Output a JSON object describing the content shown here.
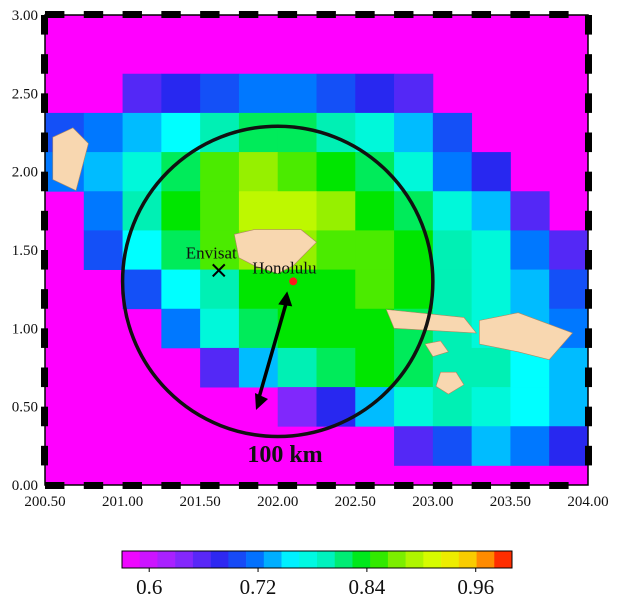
{
  "chart_data": {
    "type": "heatmap",
    "x_ticks": [
      "200.50",
      "201.00",
      "201.50",
      "202.00",
      "202.50",
      "203.00",
      "203.50",
      "204.00"
    ],
    "y_ticks": [
      "0.00",
      "0.50",
      "1.00",
      "1.50",
      "2.00",
      "2.50",
      "3.00"
    ],
    "xlim": [
      200.5,
      204.0
    ],
    "ylim": [
      0.0,
      3.0
    ],
    "background_color": "#ff00ff",
    "cell_size": 0.25,
    "grid_origin": [
      200.5,
      0.125
    ],
    "grid_rows_north_to_south": [
      [
        0.6,
        0.6,
        0.66,
        0.68,
        0.7,
        0.72,
        0.72,
        0.7,
        0.68,
        0.66,
        0.6,
        0.6,
        0.6,
        0.6
      ],
      [
        0.7,
        0.72,
        0.74,
        0.76,
        0.8,
        0.82,
        0.82,
        0.8,
        0.78,
        0.74,
        0.7,
        0.6,
        0.6,
        0.6
      ],
      [
        0.72,
        0.74,
        0.78,
        0.82,
        0.86,
        0.88,
        0.86,
        0.84,
        0.82,
        0.78,
        0.72,
        0.68,
        0.6,
        0.6
      ],
      [
        0.6,
        0.72,
        0.8,
        0.84,
        0.86,
        0.9,
        0.9,
        0.88,
        0.84,
        0.82,
        0.78,
        0.74,
        0.66,
        0.6
      ],
      [
        0.6,
        0.7,
        0.76,
        0.82,
        0.86,
        0.88,
        0.88,
        0.86,
        0.86,
        0.84,
        0.8,
        0.78,
        0.72,
        0.66
      ],
      [
        0.6,
        0.6,
        0.7,
        0.76,
        0.8,
        0.84,
        0.84,
        0.84,
        0.86,
        0.84,
        0.8,
        0.78,
        0.74,
        0.7
      ],
      [
        0.6,
        0.6,
        0.6,
        0.72,
        0.78,
        0.82,
        0.84,
        0.84,
        0.84,
        0.82,
        0.8,
        0.78,
        0.74,
        0.72
      ],
      [
        0.6,
        0.6,
        0.6,
        0.6,
        0.66,
        0.74,
        0.8,
        0.82,
        0.84,
        0.82,
        0.8,
        0.8,
        0.76,
        0.74
      ],
      [
        0.6,
        0.6,
        0.6,
        0.6,
        0.6,
        0.6,
        0.64,
        0.68,
        0.74,
        0.78,
        0.8,
        0.78,
        0.76,
        0.74
      ],
      [
        0.6,
        0.6,
        0.6,
        0.6,
        0.6,
        0.6,
        0.6,
        0.6,
        0.6,
        0.66,
        0.7,
        0.74,
        0.72,
        0.68
      ]
    ],
    "grid_first_row_top_y": 2.625,
    "colorbar": {
      "vmin": 0.57,
      "vmax": 1.0,
      "steps": 22,
      "tick_values": [
        0.6,
        0.72,
        0.84,
        0.96
      ],
      "tick_labels": [
        "0.6",
        "0.72",
        "0.84",
        "0.96"
      ]
    },
    "annotations": {
      "envisat": {
        "label": "Envisat",
        "lon": 201.62,
        "lat": 1.37
      },
      "honolulu": {
        "label": "Honolulu",
        "lon": 202.1,
        "lat": 1.3
      },
      "circle": {
        "center_lon": 202.0,
        "center_lat": 1.3,
        "radius_lon": 1.0
      },
      "scale_label": "100 km"
    },
    "islands": [
      {
        "name": "kauai",
        "points": [
          [
            200.55,
            2.22
          ],
          [
            200.68,
            2.28
          ],
          [
            200.78,
            2.18
          ],
          [
            200.7,
            1.88
          ],
          [
            200.55,
            1.95
          ]
        ]
      },
      {
        "name": "oahu",
        "points": [
          [
            201.72,
            1.6
          ],
          [
            201.85,
            1.63
          ],
          [
            202.15,
            1.63
          ],
          [
            202.25,
            1.55
          ],
          [
            202.1,
            1.4
          ],
          [
            202.0,
            1.35
          ],
          [
            201.85,
            1.4
          ],
          [
            201.75,
            1.45
          ]
        ]
      },
      {
        "name": "molokai",
        "points": [
          [
            202.7,
            1.12
          ],
          [
            203.2,
            1.07
          ],
          [
            203.28,
            0.97
          ],
          [
            202.75,
            1.0
          ]
        ]
      },
      {
        "name": "lanai",
        "points": [
          [
            203.05,
            0.72
          ],
          [
            203.15,
            0.72
          ],
          [
            203.2,
            0.64
          ],
          [
            203.1,
            0.58
          ],
          [
            203.02,
            0.63
          ]
        ]
      },
      {
        "name": "maui",
        "points": [
          [
            203.3,
            1.05
          ],
          [
            203.55,
            1.1
          ],
          [
            203.9,
            0.97
          ],
          [
            203.75,
            0.8
          ],
          [
            203.55,
            0.85
          ],
          [
            203.3,
            0.9
          ]
        ]
      },
      {
        "name": "kahoolawe",
        "points": [
          [
            202.95,
            0.9
          ],
          [
            203.05,
            0.92
          ],
          [
            203.1,
            0.85
          ],
          [
            203.0,
            0.82
          ]
        ]
      }
    ]
  },
  "colors": {
    "island": "#f8d7b0",
    "circle": "#111111",
    "honolulu_dot": "#ff1a1a"
  }
}
